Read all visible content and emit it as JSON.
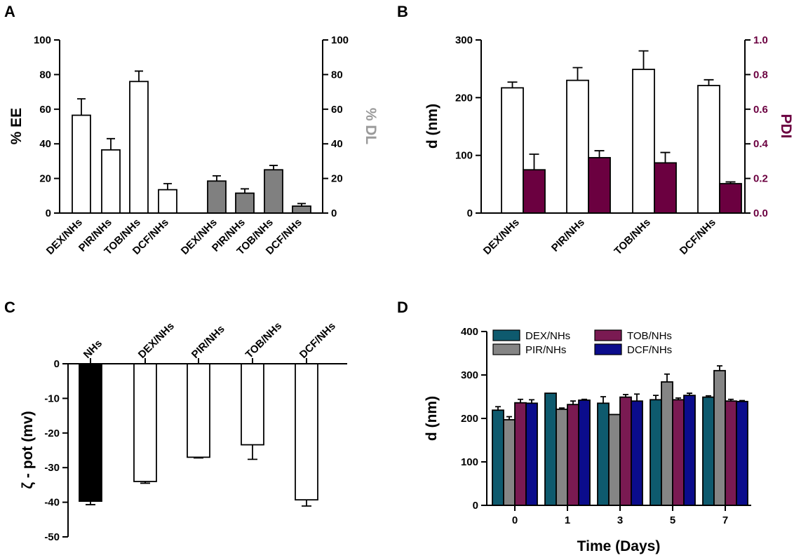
{
  "chart_data": [
    {
      "panel": "A",
      "type": "bar",
      "categories": [
        "DEX/NHs",
        "PIR/NHs",
        "TOB/NHs",
        "DCF/NHs"
      ],
      "series": [
        {
          "name": "% EE",
          "axis": "left",
          "color": "#ffffff",
          "values": [
            56.5,
            36.5,
            76,
            13.5
          ],
          "errors": [
            9.5,
            6.5,
            6,
            3.5
          ]
        },
        {
          "name": "% DL",
          "axis": "right",
          "color": "#808080",
          "values": [
            18.5,
            11.5,
            25,
            4
          ],
          "errors": [
            3,
            2.5,
            2.5,
            1.5
          ]
        }
      ],
      "ylabel": "% EE",
      "y2label": "% DL",
      "ylim": [
        0,
        100
      ],
      "y2lim": [
        0,
        100
      ],
      "yticks": [
        "0",
        "20",
        "40",
        "60",
        "80",
        "100"
      ],
      "y2ticks": [
        "0",
        "20",
        "40",
        "60",
        "80",
        "100"
      ]
    },
    {
      "panel": "B",
      "type": "bar",
      "categories": [
        "DEX/NHs",
        "PIR/NHs",
        "TOB/NHs",
        "DCF/NHs"
      ],
      "series": [
        {
          "name": "d (nm)",
          "axis": "left",
          "color": "#ffffff",
          "values": [
            217,
            230,
            249,
            221
          ],
          "errors": [
            10,
            22,
            32,
            10
          ]
        },
        {
          "name": "PDI",
          "axis": "right",
          "color": "#6b0040",
          "values": [
            0.25,
            0.32,
            0.29,
            0.17
          ],
          "errors": [
            0.09,
            0.04,
            0.06,
            0.01
          ]
        }
      ],
      "ylabel": "d (nm)",
      "y2label": "PDI",
      "ylim": [
        0,
        300
      ],
      "y2lim": [
        0,
        1
      ],
      "yticks": [
        "0",
        "100",
        "200",
        "300"
      ],
      "y2ticks": [
        "0.0",
        "0.2",
        "0.4",
        "0.6",
        "0.8",
        "1.0"
      ]
    },
    {
      "panel": "C",
      "type": "bar",
      "categories": [
        "NHs",
        "DEX/NHs",
        "PIR/NHs",
        "TOB/NHs",
        "DCF/NHs"
      ],
      "series": [
        {
          "name": "ζ - pot (mv)",
          "colors": [
            "#000000",
            "#ffffff",
            "#ffffff",
            "#ffffff",
            "#ffffff"
          ],
          "values": [
            -39.7,
            -34,
            -27,
            -23.4,
            -39.3
          ],
          "errors": [
            1,
            0.5,
            0.2,
            4.2,
            1.8
          ]
        }
      ],
      "ylabel": "ζ - pot (mv)",
      "ylim": [
        -50,
        0
      ],
      "yticks": [
        "0",
        "-10",
        "-20",
        "-30",
        "-40",
        "-50"
      ]
    },
    {
      "panel": "D",
      "type": "bar",
      "categories": [
        "0",
        "1",
        "3",
        "5",
        "7"
      ],
      "series": [
        {
          "name": "DEX/NHs",
          "color": "#0e5a6e",
          "values": [
            219,
            258,
            235,
            243,
            249
          ],
          "errors": [
            8,
            0,
            15,
            10,
            3
          ]
        },
        {
          "name": "PIR/NHs",
          "color": "#858585",
          "values": [
            197,
            221,
            209,
            284,
            310
          ],
          "errors": [
            7,
            3,
            0,
            18,
            11
          ]
        },
        {
          "name": "TOB/NHs",
          "color": "#7a1a52",
          "values": [
            236,
            232,
            249,
            243,
            240
          ],
          "errors": [
            8,
            8,
            6,
            4,
            4
          ]
        },
        {
          "name": "DCF/NHs",
          "color": "#0b0c8c",
          "values": [
            235,
            242,
            240,
            253,
            239
          ],
          "errors": [
            8,
            2,
            16,
            5,
            2
          ]
        }
      ],
      "xlabel": "Time (Days)",
      "ylabel": "d (nm)",
      "ylim": [
        0,
        400
      ],
      "yticks": [
        "0",
        "100",
        "200",
        "300",
        "400"
      ],
      "legend": "top"
    }
  ]
}
